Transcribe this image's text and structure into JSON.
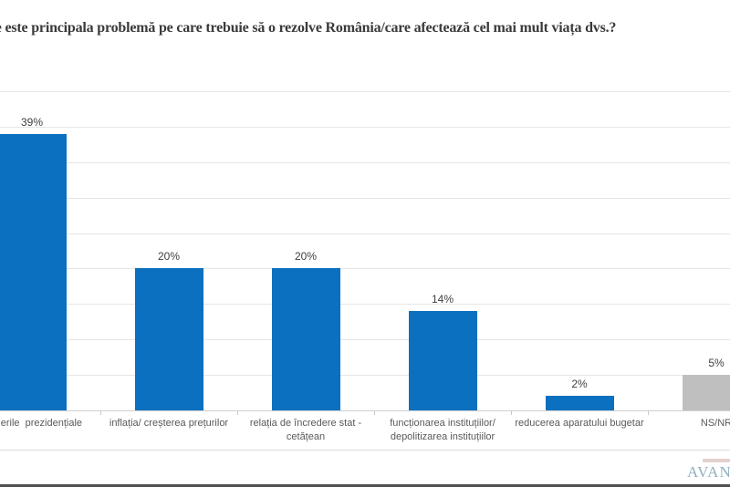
{
  "title": "Care este principala problemă pe care trebuie să o rezolve România/care afectează cel mai mult viața dvs.?",
  "chart_data": {
    "type": "bar",
    "title": "Care este principala problemă pe care trebuie să o rezolve România/care afectează cel mai mult viața dvs.?",
    "categories": [
      "alegerile  prezidențiale",
      "inflația/ creșterea prețurilor",
      "relația de încredere stat - cetățean",
      "funcționarea instituțiilor/ depolitizarea instituțiilor",
      "reducerea aparatului bugetar",
      "NS/NR"
    ],
    "values": [
      39,
      20,
      20,
      14,
      2,
      5
    ],
    "data_labels": [
      "39%",
      "20%",
      "20%",
      "14%",
      "2%",
      "5%"
    ],
    "bar_colors": [
      "#0b70bf",
      "#0b70bf",
      "#0b70bf",
      "#0b70bf",
      "#0b70bf",
      "#bfbfbf"
    ],
    "xlabel": "",
    "ylabel": "",
    "ylim": [
      0,
      45
    ],
    "gridline_step": 5,
    "grid": true,
    "legend": "none"
  },
  "colors": {
    "bar_blue": "#0b70bf",
    "bar_gray": "#bfbfbf",
    "gridline": "#e6e6e6",
    "value_text": "#404040",
    "category_text": "#595959",
    "title_text": "#3a3a3a"
  },
  "footer": {
    "logo_text": "AVAN"
  }
}
